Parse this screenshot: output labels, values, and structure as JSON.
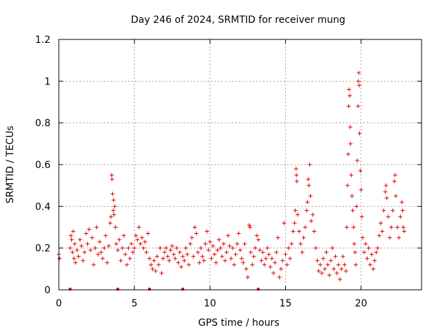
{
  "chart_data": {
    "type": "scatter",
    "title": "Day 246 of 2024, SRMTID for receiver mung",
    "xlabel": "GPS time / hours",
    "ylabel": "SRMTID / TECUs",
    "xlim": [
      0,
      24
    ],
    "ylim": [
      0,
      1.2
    ],
    "x_ticks": [
      0,
      5,
      10,
      15,
      20
    ],
    "x_tick_labels": [
      "0",
      "5",
      "10",
      "15",
      "20"
    ],
    "y_ticks": [
      0,
      0.2,
      0.4,
      0.6,
      0.8,
      1.0,
      1.2
    ],
    "y_tick_labels": [
      "0",
      "0.2",
      "0.4",
      "0.6",
      "0.8",
      "1",
      "1.2"
    ],
    "grid": true,
    "marker": "plus",
    "series": [
      {
        "name": "SRMTID",
        "color": "#e00000",
        "points": [
          [
            0.0,
            0.17
          ],
          [
            0.05,
            0.15
          ],
          [
            0.75,
            0.2
          ],
          [
            0.8,
            0.26
          ],
          [
            0.85,
            0.24
          ],
          [
            0.9,
            0.18
          ],
          [
            0.95,
            0.28
          ],
          [
            1.0,
            0.15
          ],
          [
            1.05,
            0.22
          ],
          [
            1.1,
            0.13
          ],
          [
            1.2,
            0.19
          ],
          [
            1.3,
            0.16
          ],
          [
            1.4,
            0.24
          ],
          [
            1.5,
            0.21
          ],
          [
            1.6,
            0.14
          ],
          [
            1.7,
            0.18
          ],
          [
            1.8,
            0.27
          ],
          [
            1.9,
            0.22
          ],
          [
            2.0,
            0.29
          ],
          [
            2.1,
            0.19
          ],
          [
            2.2,
            0.25
          ],
          [
            2.3,
            0.12
          ],
          [
            2.4,
            0.2
          ],
          [
            2.5,
            0.3
          ],
          [
            2.6,
            0.17
          ],
          [
            2.7,
            0.23
          ],
          [
            2.8,
            0.18
          ],
          [
            2.9,
            0.15
          ],
          [
            3.0,
            0.2
          ],
          [
            3.1,
            0.26
          ],
          [
            3.2,
            0.13
          ],
          [
            3.3,
            0.21
          ],
          [
            3.4,
            0.32
          ],
          [
            3.45,
            0.35
          ],
          [
            3.5,
            0.55
          ],
          [
            3.52,
            0.53
          ],
          [
            3.55,
            0.46
          ],
          [
            3.6,
            0.38
          ],
          [
            3.62,
            0.43
          ],
          [
            3.65,
            0.36
          ],
          [
            3.7,
            0.4
          ],
          [
            3.75,
            0.3
          ],
          [
            3.8,
            0.22
          ],
          [
            3.9,
            0.19
          ],
          [
            4.0,
            0.24
          ],
          [
            4.1,
            0.14
          ],
          [
            4.2,
            0.2
          ],
          [
            4.3,
            0.26
          ],
          [
            4.4,
            0.17
          ],
          [
            4.5,
            0.12
          ],
          [
            4.6,
            0.2
          ],
          [
            4.7,
            0.15
          ],
          [
            4.8,
            0.22
          ],
          [
            4.9,
            0.18
          ],
          [
            5.0,
            0.2
          ],
          [
            5.1,
            0.26
          ],
          [
            5.2,
            0.24
          ],
          [
            5.3,
            0.3
          ],
          [
            5.4,
            0.22
          ],
          [
            5.5,
            0.25
          ],
          [
            5.6,
            0.2
          ],
          [
            5.7,
            0.23
          ],
          [
            5.8,
            0.18
          ],
          [
            5.9,
            0.27
          ],
          [
            6.0,
            0.15
          ],
          [
            6.1,
            0.12
          ],
          [
            6.2,
            0.1
          ],
          [
            6.3,
            0.14
          ],
          [
            6.4,
            0.09
          ],
          [
            6.5,
            0.16
          ],
          [
            6.6,
            0.12
          ],
          [
            6.7,
            0.2
          ],
          [
            6.8,
            0.08
          ],
          [
            6.9,
            0.15
          ],
          [
            7.0,
            0.18
          ],
          [
            7.1,
            0.2
          ],
          [
            7.2,
            0.16
          ],
          [
            7.3,
            0.14
          ],
          [
            7.4,
            0.19
          ],
          [
            7.5,
            0.21
          ],
          [
            7.6,
            0.17
          ],
          [
            7.7,
            0.15
          ],
          [
            7.8,
            0.2
          ],
          [
            7.9,
            0.13
          ],
          [
            8.0,
            0.18
          ],
          [
            8.1,
            0.11
          ],
          [
            8.2,
            0.16
          ],
          [
            8.3,
            0.14
          ],
          [
            8.4,
            0.2
          ],
          [
            8.5,
            0.17
          ],
          [
            8.6,
            0.12
          ],
          [
            8.7,
            0.22
          ],
          [
            8.8,
            0.25
          ],
          [
            8.9,
            0.16
          ],
          [
            9.0,
            0.3
          ],
          [
            9.1,
            0.27
          ],
          [
            9.2,
            0.18
          ],
          [
            9.3,
            0.13
          ],
          [
            9.4,
            0.2
          ],
          [
            9.5,
            0.16
          ],
          [
            9.6,
            0.14
          ],
          [
            9.7,
            0.22
          ],
          [
            9.8,
            0.28
          ],
          [
            9.9,
            0.19
          ],
          [
            10.0,
            0.23
          ],
          [
            10.1,
            0.15
          ],
          [
            10.2,
            0.21
          ],
          [
            10.3,
            0.17
          ],
          [
            10.4,
            0.13
          ],
          [
            10.5,
            0.19
          ],
          [
            10.6,
            0.24
          ],
          [
            10.7,
            0.2
          ],
          [
            10.8,
            0.16
          ],
          [
            10.9,
            0.22
          ],
          [
            11.0,
            0.14
          ],
          [
            11.1,
            0.18
          ],
          [
            11.2,
            0.26
          ],
          [
            11.3,
            0.21
          ],
          [
            11.4,
            0.15
          ],
          [
            11.5,
            0.2
          ],
          [
            11.6,
            0.12
          ],
          [
            11.7,
            0.17
          ],
          [
            11.8,
            0.22
          ],
          [
            11.9,
            0.27
          ],
          [
            12.0,
            0.19
          ],
          [
            12.1,
            0.15
          ],
          [
            12.2,
            0.13
          ],
          [
            12.3,
            0.22
          ],
          [
            12.4,
            0.1
          ],
          [
            12.5,
            0.06
          ],
          [
            12.6,
            0.31
          ],
          [
            12.65,
            0.3
          ],
          [
            12.7,
            0.18
          ],
          [
            12.8,
            0.12
          ],
          [
            12.9,
            0.16
          ],
          [
            13.0,
            0.2
          ],
          [
            13.1,
            0.26
          ],
          [
            13.2,
            0.24
          ],
          [
            13.3,
            0.19
          ],
          [
            13.4,
            0.14
          ],
          [
            13.5,
            0.18
          ],
          [
            13.6,
            0.12
          ],
          [
            13.7,
            0.15
          ],
          [
            13.8,
            0.2
          ],
          [
            13.9,
            0.17
          ],
          [
            14.0,
            0.11
          ],
          [
            14.1,
            0.15
          ],
          [
            14.2,
            0.08
          ],
          [
            14.3,
            0.13
          ],
          [
            14.4,
            0.18
          ],
          [
            14.5,
            0.25
          ],
          [
            14.6,
            0.06
          ],
          [
            14.7,
            0.1
          ],
          [
            14.8,
            0.14
          ],
          [
            14.9,
            0.32
          ],
          [
            15.0,
            0.17
          ],
          [
            15.1,
            0.12
          ],
          [
            15.2,
            0.2
          ],
          [
            15.3,
            0.15
          ],
          [
            15.4,
            0.22
          ],
          [
            15.5,
            0.28
          ],
          [
            15.6,
            0.32
          ],
          [
            15.65,
            0.38
          ],
          [
            15.7,
            0.58
          ],
          [
            15.72,
            0.55
          ],
          [
            15.75,
            0.52
          ],
          [
            15.8,
            0.36
          ],
          [
            15.9,
            0.28
          ],
          [
            16.0,
            0.22
          ],
          [
            16.1,
            0.18
          ],
          [
            16.2,
            0.25
          ],
          [
            16.3,
            0.3
          ],
          [
            16.4,
            0.38
          ],
          [
            16.45,
            0.42
          ],
          [
            16.5,
            0.53
          ],
          [
            16.55,
            0.5
          ],
          [
            16.6,
            0.6
          ],
          [
            16.65,
            0.45
          ],
          [
            16.7,
            0.33
          ],
          [
            16.8,
            0.36
          ],
          [
            16.9,
            0.28
          ],
          [
            17.0,
            0.2
          ],
          [
            17.1,
            0.14
          ],
          [
            17.2,
            0.09
          ],
          [
            17.3,
            0.12
          ],
          [
            17.4,
            0.08
          ],
          [
            17.5,
            0.15
          ],
          [
            17.6,
            0.1
          ],
          [
            17.7,
            0.18
          ],
          [
            17.8,
            0.12
          ],
          [
            17.9,
            0.07
          ],
          [
            18.0,
            0.14
          ],
          [
            18.1,
            0.2
          ],
          [
            18.2,
            0.1
          ],
          [
            18.3,
            0.16
          ],
          [
            18.4,
            0.08
          ],
          [
            18.5,
            0.12
          ],
          [
            18.6,
            0.05
          ],
          [
            18.7,
            0.1
          ],
          [
            18.8,
            0.16
          ],
          [
            18.9,
            0.12
          ],
          [
            19.0,
            0.09
          ],
          [
            19.05,
            0.3
          ],
          [
            19.1,
            0.5
          ],
          [
            19.15,
            0.65
          ],
          [
            19.18,
            0.88
          ],
          [
            19.2,
            0.96
          ],
          [
            19.25,
            0.93
          ],
          [
            19.28,
            0.78
          ],
          [
            19.3,
            0.7
          ],
          [
            19.35,
            0.55
          ],
          [
            19.4,
            0.45
          ],
          [
            19.45,
            0.38
          ],
          [
            19.5,
            0.3
          ],
          [
            19.55,
            0.22
          ],
          [
            19.6,
            0.18
          ],
          [
            19.65,
            0.12
          ],
          [
            19.7,
            0.4
          ],
          [
            19.75,
            0.62
          ],
          [
            19.8,
            0.88
          ],
          [
            19.82,
            1.0
          ],
          [
            19.85,
            1.04
          ],
          [
            19.88,
            0.98
          ],
          [
            19.9,
            0.75
          ],
          [
            19.95,
            0.57
          ],
          [
            20.0,
            0.48
          ],
          [
            20.05,
            0.35
          ],
          [
            20.1,
            0.25
          ],
          [
            20.2,
            0.18
          ],
          [
            20.3,
            0.22
          ],
          [
            20.4,
            0.15
          ],
          [
            20.5,
            0.2
          ],
          [
            20.6,
            0.12
          ],
          [
            20.7,
            0.17
          ],
          [
            20.8,
            0.1
          ],
          [
            20.9,
            0.14
          ],
          [
            21.0,
            0.18
          ],
          [
            21.1,
            0.2
          ],
          [
            21.2,
            0.26
          ],
          [
            21.3,
            0.32
          ],
          [
            21.4,
            0.28
          ],
          [
            21.5,
            0.38
          ],
          [
            21.6,
            0.47
          ],
          [
            21.65,
            0.5
          ],
          [
            21.7,
            0.44
          ],
          [
            21.8,
            0.35
          ],
          [
            21.9,
            0.25
          ],
          [
            22.0,
            0.3
          ],
          [
            22.1,
            0.38
          ],
          [
            22.2,
            0.52
          ],
          [
            22.25,
            0.55
          ],
          [
            22.3,
            0.45
          ],
          [
            22.4,
            0.3
          ],
          [
            22.5,
            0.25
          ],
          [
            22.6,
            0.35
          ],
          [
            22.7,
            0.42
          ],
          [
            22.75,
            0.38
          ],
          [
            22.8,
            0.3
          ],
          [
            22.85,
            0.28
          ]
        ]
      }
    ],
    "x_markers": [
      0.75,
      3.9,
      6.0,
      8.2,
      13.2
    ]
  }
}
